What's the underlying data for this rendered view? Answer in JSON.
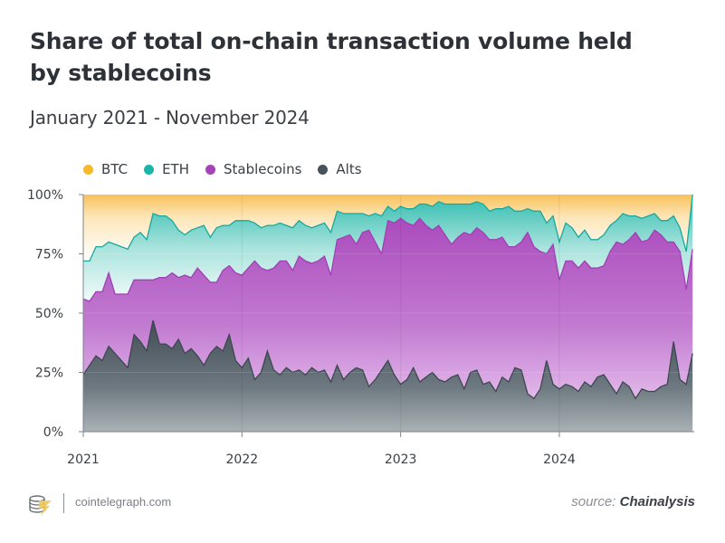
{
  "header": {
    "title": "Share of total on-chain transaction volume held by stablecoins",
    "subtitle": "January 2021 - November 2024"
  },
  "legend": [
    {
      "label": "BTC",
      "color": "#f7b92b"
    },
    {
      "label": "ETH",
      "color": "#1bb5a8"
    },
    {
      "label": "Stablecoins",
      "color": "#a544b8"
    },
    {
      "label": "Alts",
      "color": "#46525c"
    }
  ],
  "footer": {
    "site": "cointelegraph.com",
    "source_prefix": "source:",
    "source_name": "Chainalysis",
    "logo_icon": "cointelegraph-logo-icon"
  },
  "chart_data": {
    "type": "area",
    "stacked": true,
    "title": "Share of total on-chain transaction volume held by stablecoins",
    "subtitle": "January 2021 - November 2024",
    "xlabel": "",
    "ylabel": "",
    "x_range": [
      2021.0,
      2024.85
    ],
    "ylim": [
      0,
      100
    ],
    "y_ticks": [
      "0%",
      "25%",
      "50%",
      "75%",
      "100%"
    ],
    "x_ticks": [
      "2021",
      "2022",
      "2023",
      "2024"
    ],
    "legend_position": "top-left",
    "grid": true,
    "x": [
      2021.0,
      2021.04,
      2021.08,
      2021.12,
      2021.16,
      2021.2,
      2021.24,
      2021.28,
      2021.32,
      2021.36,
      2021.4,
      2021.44,
      2021.48,
      2021.52,
      2021.56,
      2021.6,
      2021.64,
      2021.68,
      2021.72,
      2021.76,
      2021.8,
      2021.84,
      2021.88,
      2021.92,
      2021.96,
      2022.0,
      2022.04,
      2022.08,
      2022.12,
      2022.16,
      2022.2,
      2022.24,
      2022.28,
      2022.32,
      2022.36,
      2022.4,
      2022.44,
      2022.48,
      2022.52,
      2022.56,
      2022.6,
      2022.64,
      2022.68,
      2022.72,
      2022.76,
      2022.8,
      2022.84,
      2022.88,
      2022.92,
      2022.96,
      2023.0,
      2023.04,
      2023.08,
      2023.12,
      2023.16,
      2023.2,
      2023.24,
      2023.28,
      2023.32,
      2023.36,
      2023.4,
      2023.44,
      2023.48,
      2023.52,
      2023.56,
      2023.6,
      2023.64,
      2023.68,
      2023.72,
      2023.76,
      2023.8,
      2023.84,
      2023.88,
      2023.92,
      2023.96,
      2024.0,
      2024.04,
      2024.08,
      2024.12,
      2024.16,
      2024.2,
      2024.24,
      2024.28,
      2024.32,
      2024.36,
      2024.4,
      2024.44,
      2024.48,
      2024.52,
      2024.56,
      2024.6,
      2024.64,
      2024.68,
      2024.72,
      2024.76,
      2024.8,
      2024.84
    ],
    "series": [
      {
        "name": "Alts",
        "values": [
          24,
          28,
          32,
          30,
          36,
          33,
          30,
          27,
          41,
          38,
          34,
          47,
          37,
          37,
          35,
          39,
          33,
          35,
          32,
          28,
          33,
          36,
          34,
          41,
          30,
          27,
          31,
          22,
          25,
          34,
          26,
          24,
          27,
          25,
          26,
          24,
          27,
          25,
          26,
          21,
          28,
          22,
          25,
          27,
          26,
          19,
          22,
          26,
          30,
          24,
          20,
          22,
          27,
          21,
          23,
          25,
          22,
          21,
          23,
          24,
          18,
          25,
          26,
          20,
          21,
          17,
          23,
          21,
          27,
          26,
          16,
          14,
          18,
          30,
          20,
          18,
          20,
          19,
          17,
          21,
          19,
          23,
          24,
          20,
          16,
          21,
          19,
          14,
          18,
          17,
          17,
          19,
          20,
          38,
          22,
          20,
          33
        ]
      },
      {
        "name": "Stablecoins",
        "values": [
          32,
          27,
          27,
          29,
          31,
          25,
          28,
          31,
          23,
          26,
          30,
          17,
          28,
          28,
          32,
          26,
          33,
          30,
          37,
          38,
          30,
          27,
          34,
          29,
          37,
          39,
          38,
          50,
          44,
          34,
          43,
          48,
          45,
          43,
          48,
          48,
          44,
          47,
          48,
          45,
          53,
          60,
          58,
          52,
          58,
          66,
          58,
          49,
          59,
          64,
          70,
          66,
          60,
          69,
          64,
          60,
          65,
          62,
          56,
          58,
          66,
          58,
          60,
          64,
          60,
          64,
          59,
          57,
          51,
          54,
          68,
          64,
          58,
          45,
          59,
          46,
          52,
          53,
          52,
          51,
          50,
          46,
          46,
          56,
          64,
          58,
          62,
          70,
          62,
          64,
          68,
          64,
          60,
          42,
          54,
          40,
          44
        ]
      },
      {
        "name": "ETH",
        "values": [
          16,
          17,
          19,
          19,
          13,
          21,
          20,
          19,
          18,
          20,
          17,
          28,
          26,
          26,
          22,
          20,
          17,
          20,
          17,
          21,
          19,
          23,
          19,
          17,
          22,
          23,
          20,
          16,
          17,
          19,
          18,
          16,
          15,
          18,
          15,
          15,
          15,
          15,
          14,
          18,
          12,
          10,
          9,
          13,
          8,
          6,
          12,
          16,
          6,
          5,
          5,
          6,
          7,
          6,
          9,
          10,
          10,
          13,
          17,
          14,
          12,
          13,
          11,
          12,
          12,
          13,
          12,
          17,
          15,
          13,
          10,
          15,
          17,
          13,
          12,
          16,
          16,
          14,
          13,
          13,
          12,
          12,
          13,
          11,
          9,
          13,
          10,
          7,
          10,
          10,
          7,
          6,
          9,
          11,
          10,
          16,
          23
        ]
      },
      {
        "name": "BTC",
        "values": [
          28,
          28,
          22,
          22,
          20,
          21,
          22,
          23,
          18,
          16,
          19,
          8,
          9,
          9,
          11,
          15,
          17,
          15,
          14,
          13,
          18,
          14,
          13,
          13,
          11,
          11,
          11,
          12,
          14,
          13,
          13,
          12,
          13,
          14,
          11,
          13,
          14,
          13,
          12,
          16,
          7,
          8,
          8,
          8,
          8,
          9,
          8,
          9,
          5,
          7,
          5,
          6,
          6,
          4,
          4,
          5,
          3,
          4,
          4,
          4,
          4,
          4,
          3,
          4,
          7,
          6,
          6,
          5,
          7,
          7,
          6,
          7,
          7,
          12,
          9,
          20,
          12,
          14,
          18,
          15,
          19,
          19,
          17,
          13,
          11,
          8,
          9,
          9,
          10,
          9,
          8,
          11,
          11,
          9,
          14,
          24,
          0
        ]
      }
    ]
  }
}
